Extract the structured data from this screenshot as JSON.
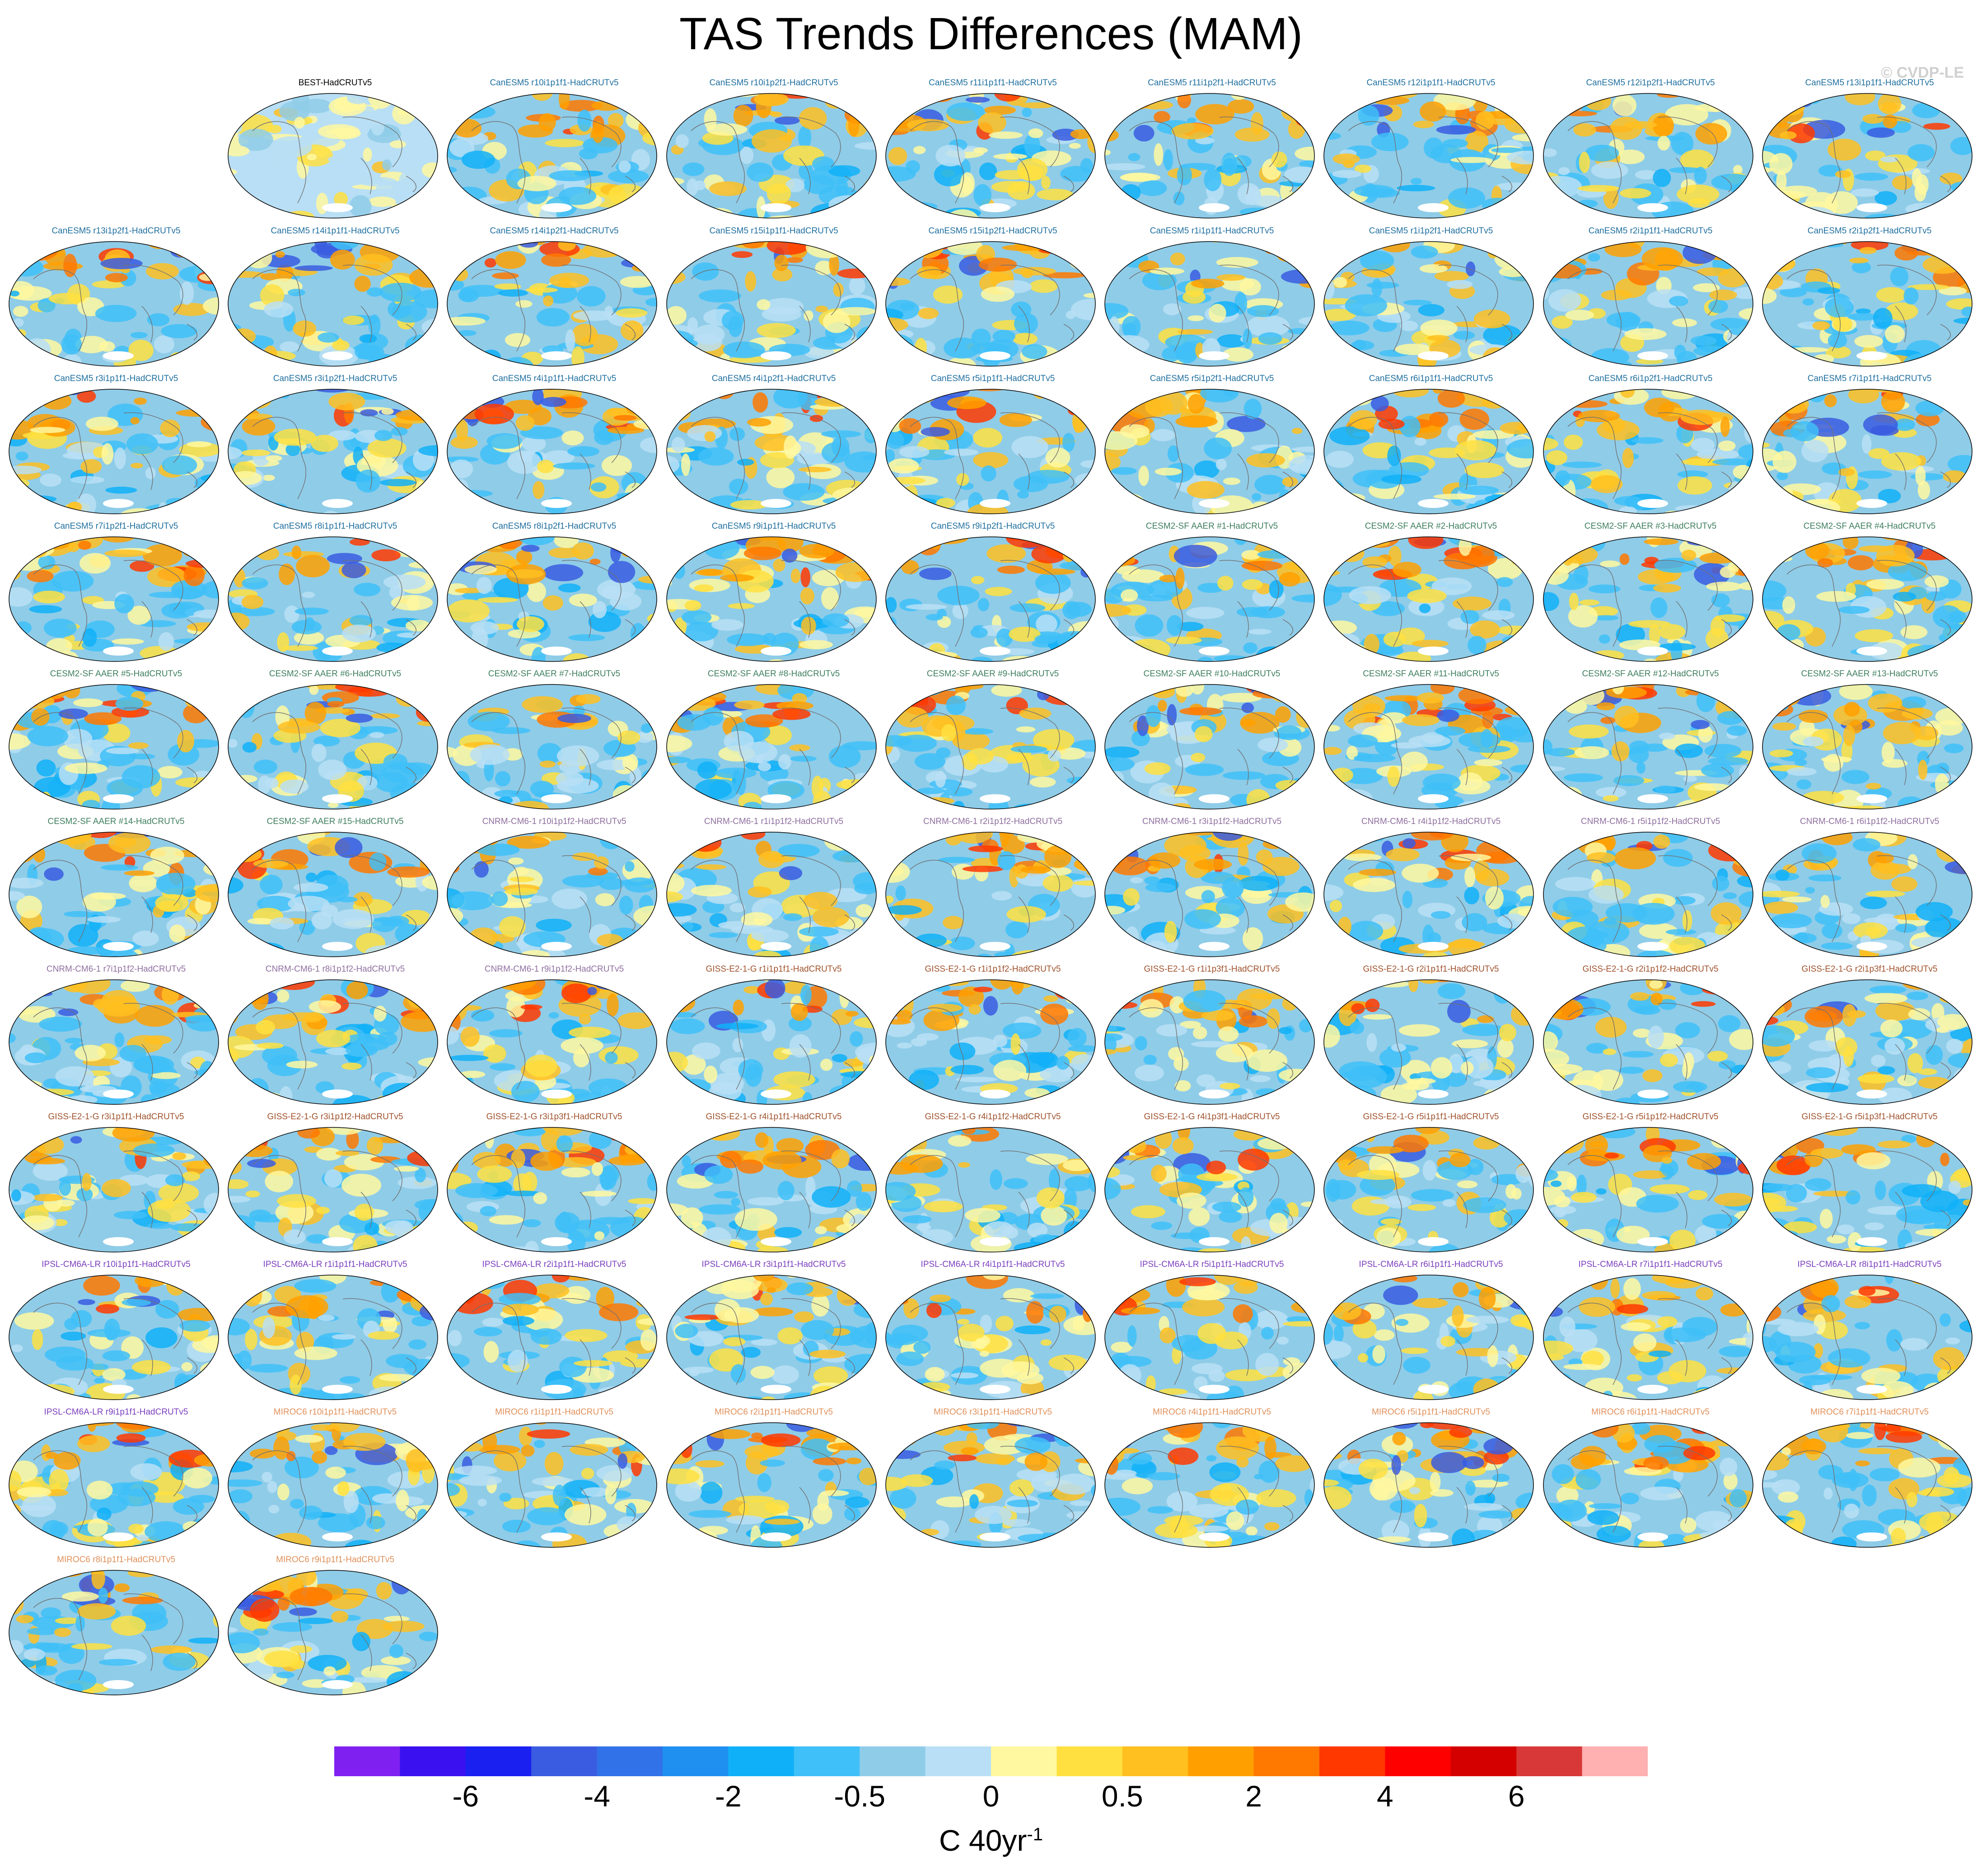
{
  "figure": {
    "title": "TAS Trends Differences (MAM)",
    "credit": "© CVDP-LE"
  },
  "chart_data": {
    "type": "heatmap",
    "projection": "Robinson (global map panels)",
    "panels": [
      {
        "label": "BEST-HadCRUTv5",
        "color": "#000000"
      },
      {
        "label": "CanESM5 r10i1p1f1-HadCRUTv5",
        "color": "#1f6f9f"
      },
      {
        "label": "CanESM5 r10i1p2f1-HadCRUTv5",
        "color": "#1f6f9f"
      },
      {
        "label": "CanESM5 r11i1p1f1-HadCRUTv5",
        "color": "#1f6f9f"
      },
      {
        "label": "CanESM5 r11i1p2f1-HadCRUTv5",
        "color": "#1f6f9f"
      },
      {
        "label": "CanESM5 r12i1p1f1-HadCRUTv5",
        "color": "#1f6f9f"
      },
      {
        "label": "CanESM5 r12i1p2f1-HadCRUTv5",
        "color": "#1f6f9f"
      },
      {
        "label": "CanESM5 r13i1p1f1-HadCRUTv5",
        "color": "#1f6f9f"
      },
      {
        "label": "CanESM5 r13i1p2f1-HadCRUTv5",
        "color": "#1f6f9f"
      },
      {
        "label": "CanESM5 r14i1p1f1-HadCRUTv5",
        "color": "#1f6f9f"
      },
      {
        "label": "CanESM5 r14i1p2f1-HadCRUTv5",
        "color": "#1f6f9f"
      },
      {
        "label": "CanESM5 r15i1p1f1-HadCRUTv5",
        "color": "#1f6f9f"
      },
      {
        "label": "CanESM5 r15i1p2f1-HadCRUTv5",
        "color": "#1f6f9f"
      },
      {
        "label": "CanESM5 r1i1p1f1-HadCRUTv5",
        "color": "#1f6f9f"
      },
      {
        "label": "CanESM5 r1i1p2f1-HadCRUTv5",
        "color": "#1f6f9f"
      },
      {
        "label": "CanESM5 r2i1p1f1-HadCRUTv5",
        "color": "#1f6f9f"
      },
      {
        "label": "CanESM5 r2i1p2f1-HadCRUTv5",
        "color": "#1f6f9f"
      },
      {
        "label": "CanESM5 r3i1p1f1-HadCRUTv5",
        "color": "#1f6f9f"
      },
      {
        "label": "CanESM5 r3i1p2f1-HadCRUTv5",
        "color": "#1f6f9f"
      },
      {
        "label": "CanESM5 r4i1p1f1-HadCRUTv5",
        "color": "#1f6f9f"
      },
      {
        "label": "CanESM5 r4i1p2f1-HadCRUTv5",
        "color": "#1f6f9f"
      },
      {
        "label": "CanESM5 r5i1p1f1-HadCRUTv5",
        "color": "#1f6f9f"
      },
      {
        "label": "CanESM5 r5i1p2f1-HadCRUTv5",
        "color": "#1f6f9f"
      },
      {
        "label": "CanESM5 r6i1p1f1-HadCRUTv5",
        "color": "#1f6f9f"
      },
      {
        "label": "CanESM5 r6i1p2f1-HadCRUTv5",
        "color": "#1f6f9f"
      },
      {
        "label": "CanESM5 r7i1p1f1-HadCRUTv5",
        "color": "#1f6f9f"
      },
      {
        "label": "CanESM5 r7i1p2f1-HadCRUTv5",
        "color": "#1f6f9f"
      },
      {
        "label": "CanESM5 r8i1p1f1-HadCRUTv5",
        "color": "#1f6f9f"
      },
      {
        "label": "CanESM5 r8i1p2f1-HadCRUTv5",
        "color": "#1f6f9f"
      },
      {
        "label": "CanESM5 r9i1p1f1-HadCRUTv5",
        "color": "#1f6f9f"
      },
      {
        "label": "CanESM5 r9i1p2f1-HadCRUTv5",
        "color": "#1f6f9f"
      },
      {
        "label": "CESM2-SF AAER #1-HadCRUTv5",
        "color": "#3f7f5f"
      },
      {
        "label": "CESM2-SF AAER #2-HadCRUTv5",
        "color": "#3f7f5f"
      },
      {
        "label": "CESM2-SF AAER #3-HadCRUTv5",
        "color": "#3f7f5f"
      },
      {
        "label": "CESM2-SF AAER #4-HadCRUTv5",
        "color": "#3f7f5f"
      },
      {
        "label": "CESM2-SF AAER #5-HadCRUTv5",
        "color": "#3f7f5f"
      },
      {
        "label": "CESM2-SF AAER #6-HadCRUTv5",
        "color": "#3f7f5f"
      },
      {
        "label": "CESM2-SF AAER #7-HadCRUTv5",
        "color": "#3f7f5f"
      },
      {
        "label": "CESM2-SF AAER #8-HadCRUTv5",
        "color": "#3f7f5f"
      },
      {
        "label": "CESM2-SF AAER #9-HadCRUTv5",
        "color": "#3f7f5f"
      },
      {
        "label": "CESM2-SF AAER #10-HadCRUTv5",
        "color": "#3f7f5f"
      },
      {
        "label": "CESM2-SF AAER #11-HadCRUTv5",
        "color": "#3f7f5f"
      },
      {
        "label": "CESM2-SF AAER #12-HadCRUTv5",
        "color": "#3f7f5f"
      },
      {
        "label": "CESM2-SF AAER #13-HadCRUTv5",
        "color": "#3f7f5f"
      },
      {
        "label": "CESM2-SF AAER #14-HadCRUTv5",
        "color": "#3f7f5f"
      },
      {
        "label": "CESM2-SF AAER #15-HadCRUTv5",
        "color": "#3f7f5f"
      },
      {
        "label": "CNRM-CM6-1 r10i1p1f2-HadCRUTv5",
        "color": "#8f6f9f"
      },
      {
        "label": "CNRM-CM6-1 r1i1p1f2-HadCRUTv5",
        "color": "#8f6f9f"
      },
      {
        "label": "CNRM-CM6-1 r2i1p1f2-HadCRUTv5",
        "color": "#8f6f9f"
      },
      {
        "label": "CNRM-CM6-1 r3i1p1f2-HadCRUTv5",
        "color": "#8f6f9f"
      },
      {
        "label": "CNRM-CM6-1 r4i1p1f2-HadCRUTv5",
        "color": "#8f6f9f"
      },
      {
        "label": "CNRM-CM6-1 r5i1p1f2-HadCRUTv5",
        "color": "#8f6f9f"
      },
      {
        "label": "CNRM-CM6-1 r6i1p1f2-HadCRUTv5",
        "color": "#8f6f9f"
      },
      {
        "label": "CNRM-CM6-1 r7i1p1f2-HadCRUTv5",
        "color": "#8f6f9f"
      },
      {
        "label": "CNRM-CM6-1 r8i1p1f2-HadCRUTv5",
        "color": "#8f6f9f"
      },
      {
        "label": "CNRM-CM6-1 r9i1p1f2-HadCRUTv5",
        "color": "#8f6f9f"
      },
      {
        "label": "GISS-E2-1-G r1i1p1f1-HadCRUTv5",
        "color": "#a0522d"
      },
      {
        "label": "GISS-E2-1-G r1i1p1f2-HadCRUTv5",
        "color": "#a0522d"
      },
      {
        "label": "GISS-E2-1-G r1i1p3f1-HadCRUTv5",
        "color": "#a0522d"
      },
      {
        "label": "GISS-E2-1-G r2i1p1f1-HadCRUTv5",
        "color": "#a0522d"
      },
      {
        "label": "GISS-E2-1-G r2i1p1f2-HadCRUTv5",
        "color": "#a0522d"
      },
      {
        "label": "GISS-E2-1-G r2i1p3f1-HadCRUTv5",
        "color": "#a0522d"
      },
      {
        "label": "GISS-E2-1-G r3i1p1f1-HadCRUTv5",
        "color": "#a0522d"
      },
      {
        "label": "GISS-E2-1-G r3i1p1f2-HadCRUTv5",
        "color": "#a0522d"
      },
      {
        "label": "GISS-E2-1-G r3i1p3f1-HadCRUTv5",
        "color": "#a0522d"
      },
      {
        "label": "GISS-E2-1-G r4i1p1f1-HadCRUTv5",
        "color": "#a0522d"
      },
      {
        "label": "GISS-E2-1-G r4i1p1f2-HadCRUTv5",
        "color": "#a0522d"
      },
      {
        "label": "GISS-E2-1-G r4i1p3f1-HadCRUTv5",
        "color": "#a0522d"
      },
      {
        "label": "GISS-E2-1-G r5i1p1f1-HadCRUTv5",
        "color": "#a0522d"
      },
      {
        "label": "GISS-E2-1-G r5i1p1f2-HadCRUTv5",
        "color": "#a0522d"
      },
      {
        "label": "GISS-E2-1-G r5i1p3f1-HadCRUTv5",
        "color": "#a0522d"
      },
      {
        "label": "IPSL-CM6A-LR r10i1p1f1-HadCRUTv5",
        "color": "#7b3fbf"
      },
      {
        "label": "IPSL-CM6A-LR r1i1p1f1-HadCRUTv5",
        "color": "#7b3fbf"
      },
      {
        "label": "IPSL-CM6A-LR r2i1p1f1-HadCRUTv5",
        "color": "#7b3fbf"
      },
      {
        "label": "IPSL-CM6A-LR r3i1p1f1-HadCRUTv5",
        "color": "#7b3fbf"
      },
      {
        "label": "IPSL-CM6A-LR r4i1p1f1-HadCRUTv5",
        "color": "#7b3fbf"
      },
      {
        "label": "IPSL-CM6A-LR r5i1p1f1-HadCRUTv5",
        "color": "#7b3fbf"
      },
      {
        "label": "IPSL-CM6A-LR r6i1p1f1-HadCRUTv5",
        "color": "#7b3fbf"
      },
      {
        "label": "IPSL-CM6A-LR r7i1p1f1-HadCRUTv5",
        "color": "#7b3fbf"
      },
      {
        "label": "IPSL-CM6A-LR r8i1p1f1-HadCRUTv5",
        "color": "#7b3fbf"
      },
      {
        "label": "IPSL-CM6A-LR r9i1p1f1-HadCRUTv5",
        "color": "#7b3fbf"
      },
      {
        "label": "MIROC6 r10i1p1f1-HadCRUTv5",
        "color": "#e0905a"
      },
      {
        "label": "MIROC6 r1i1p1f1-HadCRUTv5",
        "color": "#e0905a"
      },
      {
        "label": "MIROC6 r2i1p1f1-HadCRUTv5",
        "color": "#e0905a"
      },
      {
        "label": "MIROC6 r3i1p1f1-HadCRUTv5",
        "color": "#e0905a"
      },
      {
        "label": "MIROC6 r4i1p1f1-HadCRUTv5",
        "color": "#e0905a"
      },
      {
        "label": "MIROC6 r5i1p1f1-HadCRUTv5",
        "color": "#e0905a"
      },
      {
        "label": "MIROC6 r6i1p1f1-HadCRUTv5",
        "color": "#e0905a"
      },
      {
        "label": "MIROC6 r7i1p1f1-HadCRUTv5",
        "color": "#e0905a"
      },
      {
        "label": "MIROC6 r8i1p1f1-HadCRUTv5",
        "color": "#e0905a"
      },
      {
        "label": "MIROC6 r9i1p1f1-HadCRUTv5",
        "color": "#e0905a"
      }
    ],
    "colorbar": {
      "tick_labels": [
        "-6",
        "-4",
        "-2",
        "-0.5",
        "0",
        "0.5",
        "2",
        "4",
        "6"
      ],
      "colors": [
        "#8020f0",
        "#3a10f0",
        "#1a20f0",
        "#3a5ce0",
        "#3272e8",
        "#2090f0",
        "#10b0f8",
        "#40c0f8",
        "#8fcce8",
        "#b8dff5",
        "#fff8a0",
        "#ffe040",
        "#ffc020",
        "#ffa000",
        "#ff7800",
        "#ff3800",
        "#ff0000",
        "#d40000",
        "#d83838",
        "#ffb0b0"
      ],
      "units": "C 40yr",
      "units_exponent": "-1"
    }
  }
}
